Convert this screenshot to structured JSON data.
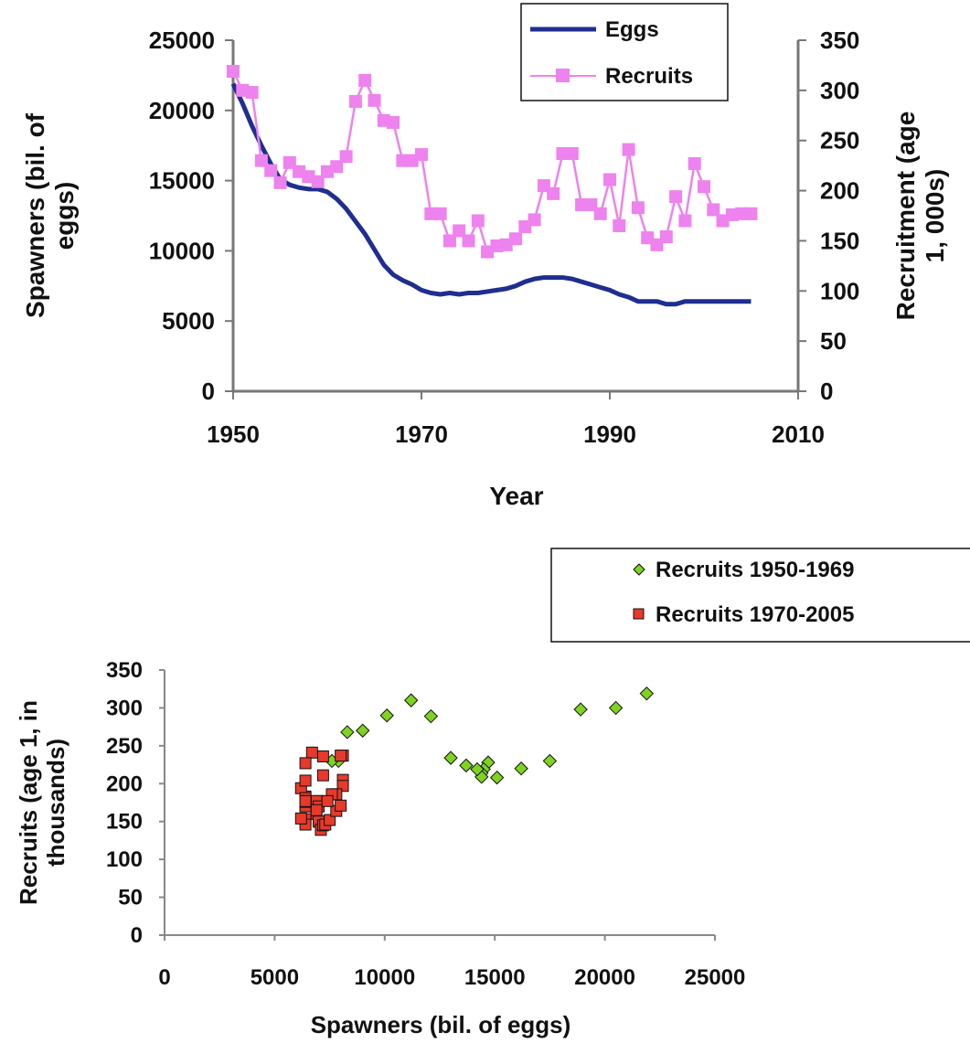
{
  "chart_data": [
    {
      "type": "line",
      "xlabel": "Year",
      "ylabel": "Spawners (bil. of eggs)",
      "y2label": "Recruitment (age 1, 000s)",
      "xlim": [
        1950,
        2010
      ],
      "ylim": [
        0,
        25000
      ],
      "y2lim": [
        0,
        350
      ],
      "x_ticks": [
        1950,
        1970,
        1990,
        2010
      ],
      "y_ticks": [
        0,
        5000,
        10000,
        15000,
        20000,
        25000
      ],
      "y2_ticks": [
        0,
        50,
        100,
        150,
        200,
        250,
        300,
        350
      ],
      "legend_position": "top-right",
      "series": [
        {
          "name": "Eggs",
          "axis": "left",
          "color": "#1f2e8f",
          "marker": "none",
          "x": [
            1950,
            1951,
            1952,
            1953,
            1954,
            1955,
            1956,
            1957,
            1958,
            1959,
            1960,
            1961,
            1962,
            1963,
            1964,
            1965,
            1966,
            1967,
            1968,
            1969,
            1970,
            1971,
            1972,
            1973,
            1974,
            1975,
            1976,
            1977,
            1978,
            1979,
            1980,
            1981,
            1982,
            1983,
            1984,
            1985,
            1986,
            1987,
            1988,
            1989,
            1990,
            1991,
            1992,
            1993,
            1994,
            1995,
            1996,
            1997,
            1998,
            1999,
            2000,
            2001,
            2002,
            2003,
            2004,
            2005
          ],
          "values": [
            21900,
            20500,
            18900,
            17500,
            16200,
            15100,
            14700,
            14500,
            14400,
            14400,
            14200,
            13700,
            13000,
            12100,
            11200,
            10100,
            9000,
            8300,
            7900,
            7600,
            7200,
            7000,
            6900,
            7000,
            6900,
            7000,
            7000,
            7100,
            7200,
            7300,
            7500,
            7800,
            8000,
            8100,
            8100,
            8100,
            8000,
            7800,
            7600,
            7400,
            7200,
            6900,
            6700,
            6400,
            6400,
            6400,
            6200,
            6200,
            6400,
            6400,
            6400,
            6400,
            6400,
            6400,
            6400,
            6400
          ]
        },
        {
          "name": "Recruits",
          "axis": "right",
          "color": "#ee82ee",
          "marker": "square",
          "x": [
            1950,
            1951,
            1952,
            1953,
            1954,
            1955,
            1956,
            1957,
            1958,
            1959,
            1960,
            1961,
            1962,
            1963,
            1964,
            1965,
            1966,
            1967,
            1968,
            1969,
            1970,
            1971,
            1972,
            1973,
            1974,
            1975,
            1976,
            1977,
            1978,
            1979,
            1980,
            1981,
            1982,
            1983,
            1984,
            1985,
            1986,
            1987,
            1988,
            1989,
            1990,
            1991,
            1992,
            1993,
            1994,
            1995,
            1996,
            1997,
            1998,
            1999,
            2000,
            2001,
            2002,
            2003,
            2004,
            2005
          ],
          "values": [
            319,
            300,
            298,
            230,
            220,
            208,
            228,
            219,
            214,
            209,
            219,
            224,
            234,
            289,
            310,
            290,
            270,
            268,
            230,
            230,
            236,
            177,
            177,
            150,
            160,
            150,
            170,
            139,
            145,
            146,
            152,
            164,
            171,
            205,
            197,
            237,
            237,
            186,
            186,
            177,
            211,
            165,
            241,
            183,
            153,
            146,
            154,
            194,
            170,
            227,
            204,
            181,
            170,
            176,
            177,
            177
          ]
        }
      ]
    },
    {
      "type": "scatter",
      "xlabel": "Spawners (bil. of eggs)",
      "ylabel": "Recruits (age 1, in thousands)",
      "xlim": [
        0,
        25000
      ],
      "ylim": [
        0,
        350
      ],
      "x_ticks": [
        0,
        5000,
        10000,
        15000,
        20000,
        25000
      ],
      "y_ticks": [
        0,
        50,
        100,
        150,
        200,
        250,
        300,
        350
      ],
      "legend_position": "top-right",
      "series": [
        {
          "name": "Recruits 1950-1969",
          "color": "#7ed321",
          "marker": "diamond",
          "x": [
            21900,
            20500,
            18900,
            17500,
            16200,
            15100,
            14700,
            14500,
            14400,
            14400,
            14200,
            13700,
            13000,
            12100,
            11200,
            10100,
            9000,
            8300,
            7900,
            7600
          ],
          "y": [
            319,
            300,
            298,
            230,
            220,
            208,
            228,
            219,
            214,
            209,
            219,
            224,
            234,
            289,
            310,
            290,
            270,
            268,
            230,
            230
          ]
        },
        {
          "name": "Recruits 1970-2005",
          "color": "#e8392a",
          "marker": "square",
          "x": [
            7200,
            7000,
            6900,
            7000,
            6900,
            7000,
            7000,
            7100,
            7200,
            7300,
            7500,
            7800,
            8000,
            8100,
            8100,
            8100,
            8000,
            7800,
            7600,
            7400,
            7200,
            6900,
            6700,
            6400,
            6400,
            6400,
            6200,
            6200,
            6400,
            6400,
            6400,
            6400,
            6400,
            6400,
            6400,
            6400
          ],
          "y": [
            236,
            177,
            177,
            150,
            160,
            150,
            170,
            139,
            145,
            146,
            152,
            164,
            171,
            205,
            197,
            237,
            237,
            186,
            186,
            177,
            211,
            165,
            241,
            183,
            153,
            146,
            154,
            194,
            170,
            227,
            204,
            181,
            170,
            176,
            177,
            177
          ]
        }
      ]
    }
  ]
}
